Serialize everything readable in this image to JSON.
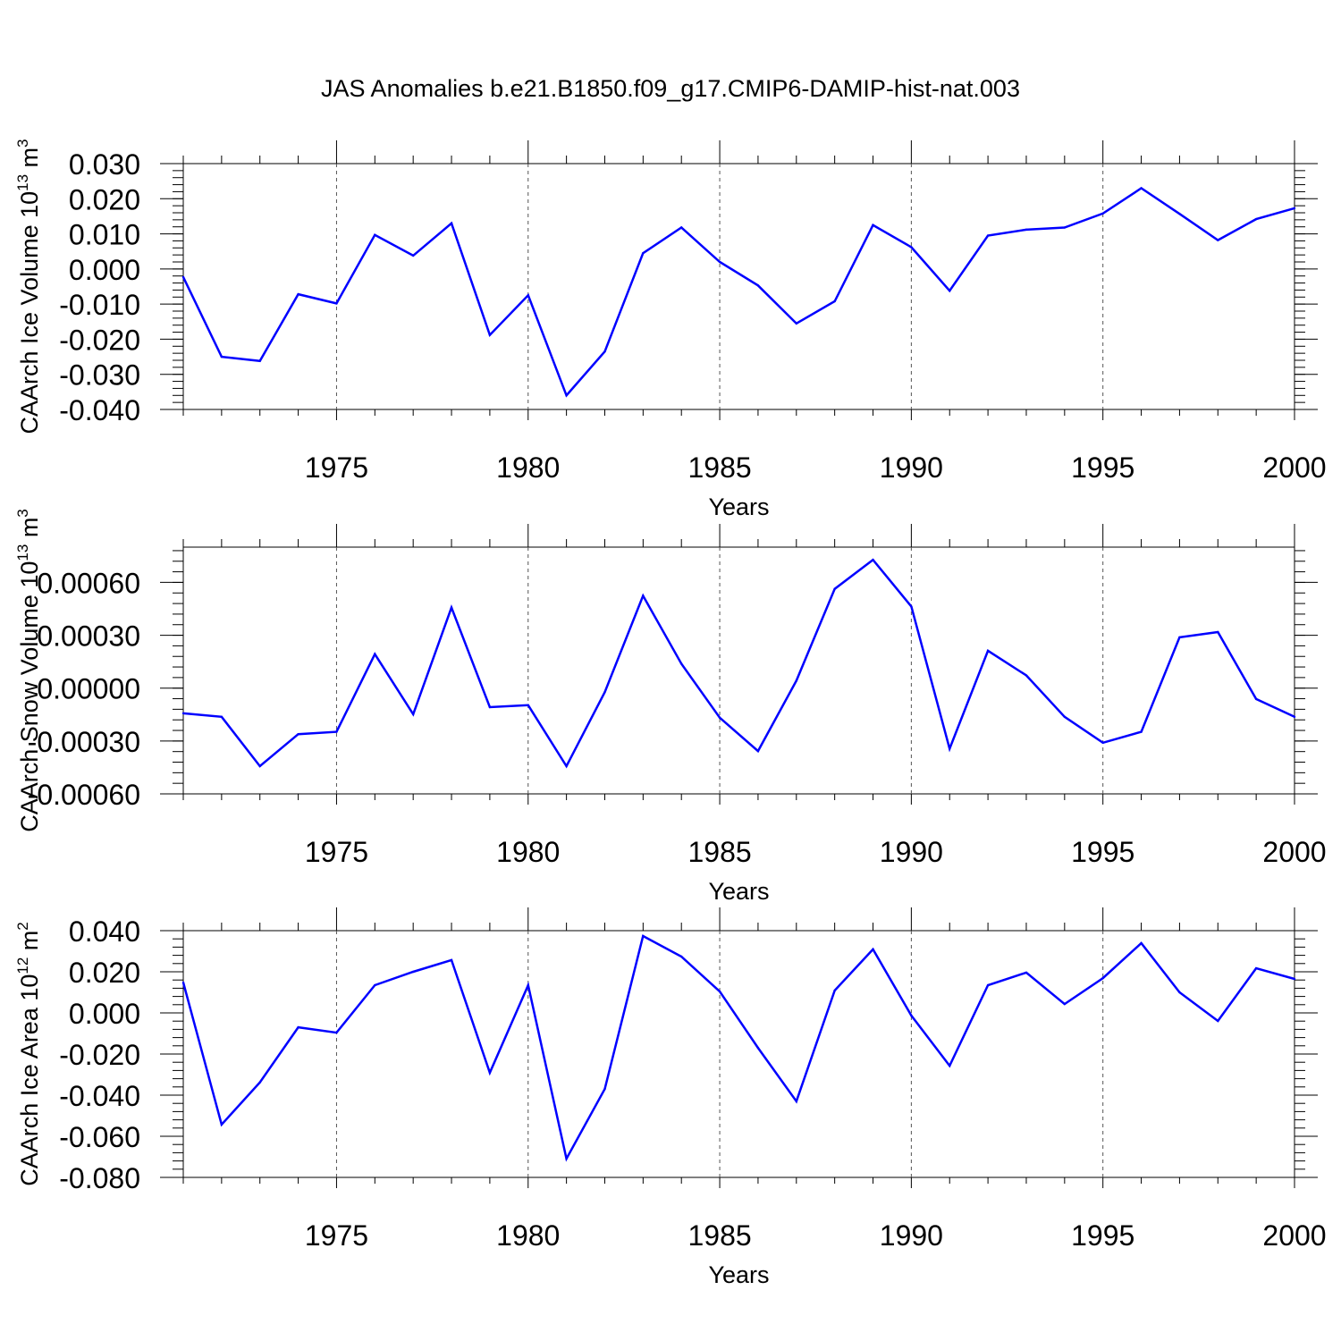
{
  "title": "JAS Anomalies b.e21.B1850.f09_g17.CMIP6-DAMIP-hist-nat.003",
  "chart_data": [
    {
      "type": "line",
      "ylabel": "CAArch Ice Volume 10",
      "ylabel_sup": "13",
      "ylabel_unit": " m",
      "ylabel_unit_sup": "3",
      "xlabel": "Years",
      "xlim": [
        1971,
        2000
      ],
      "ylim": [
        -0.04,
        0.03
      ],
      "xticks": [
        "1975",
        "1980",
        "1985",
        "1990",
        "1995",
        "2000"
      ],
      "yticks": [
        "0.030",
        "0.020",
        "0.010",
        "0.000",
        "-0.010",
        "-0.020",
        "-0.030",
        "-0.040"
      ],
      "grid": "vertical dashed at major x ticks",
      "color": "#0000ff",
      "x": [
        1971,
        1972,
        1973,
        1974,
        1975,
        1976,
        1977,
        1978,
        1979,
        1980,
        1981,
        1982,
        1983,
        1984,
        1985,
        1986,
        1987,
        1988,
        1989,
        1990,
        1991,
        1992,
        1993,
        1994,
        1995,
        1996,
        1997,
        1998,
        1999,
        2000
      ],
      "values": [
        -0.0023,
        -0.025,
        -0.0262,
        -0.0072,
        -0.0098,
        0.0097,
        0.0038,
        0.013,
        -0.0188,
        -0.0075,
        -0.036,
        -0.0235,
        0.0045,
        0.0118,
        0.002,
        -0.0047,
        -0.0155,
        -0.0092,
        0.0125,
        0.0062,
        -0.0062,
        0.0095,
        0.0112,
        0.0118,
        0.0158,
        0.023,
        0.0157,
        0.0082,
        0.0142,
        0.0173
      ]
    },
    {
      "type": "line",
      "ylabel": "CAArch Snow Volume 10",
      "ylabel_sup": "13",
      "ylabel_unit": " m",
      "ylabel_unit_sup": "3",
      "xlabel": "Years",
      "xlim": [
        1971,
        2000
      ],
      "ylim": [
        -0.0006,
        0.0008
      ],
      "xticks": [
        "1975",
        "1980",
        "1985",
        "1990",
        "1995",
        "2000"
      ],
      "yticks": [
        "0.00060",
        "0.00030",
        "0.00000",
        "-0.00030",
        "-0.00060"
      ],
      "grid": "vertical dashed at major x ticks",
      "color": "#0000ff",
      "x": [
        1971,
        1972,
        1973,
        1974,
        1975,
        1976,
        1977,
        1978,
        1979,
        1980,
        1981,
        1982,
        1983,
        1984,
        1985,
        1986,
        1987,
        1988,
        1989,
        1990,
        1991,
        1992,
        1993,
        1994,
        1995,
        1996,
        1997,
        1998,
        1999,
        2000
      ],
      "values": [
        -0.000143,
        -0.000163,
        -0.000443,
        -0.000261,
        -0.000248,
        0.000193,
        -0.000148,
        0.000457,
        -0.000108,
        -9.7e-05,
        -0.000443,
        -2.3e-05,
        0.000524,
        0.000138,
        -0.000168,
        -0.000357,
        4.2e-05,
        0.000563,
        0.000728,
        0.000463,
        -0.000344,
        0.000212,
        7.2e-05,
        -0.000163,
        -0.00031,
        -0.000248,
        0.000288,
        0.000318,
        -6.2e-05,
        -0.000163
      ]
    },
    {
      "type": "line",
      "ylabel": "CAArch Ice Area 10",
      "ylabel_sup": "12",
      "ylabel_unit": " m",
      "ylabel_unit_sup": "2",
      "xlabel": "Years",
      "xlim": [
        1971,
        2000
      ],
      "ylim": [
        -0.08,
        0.04
      ],
      "xticks": [
        "1975",
        "1980",
        "1985",
        "1990",
        "1995",
        "2000"
      ],
      "yticks": [
        "0.040",
        "0.020",
        "0.000",
        "-0.020",
        "-0.040",
        "-0.060",
        "-0.080"
      ],
      "grid": "vertical dashed at major x ticks",
      "color": "#0000ff",
      "x": [
        1971,
        1972,
        1973,
        1974,
        1975,
        1976,
        1977,
        1978,
        1979,
        1980,
        1981,
        1982,
        1983,
        1984,
        1985,
        1986,
        1987,
        1988,
        1989,
        1990,
        1991,
        1992,
        1993,
        1994,
        1995,
        1996,
        1997,
        1998,
        1999,
        2000
      ],
      "values": [
        0.0148,
        -0.0543,
        -0.0338,
        -0.007,
        -0.0096,
        0.0135,
        0.02,
        0.0257,
        -0.0291,
        0.0135,
        -0.0709,
        -0.037,
        0.0374,
        0.0274,
        0.0104,
        -0.017,
        -0.043,
        0.0109,
        0.0309,
        -0.0013,
        -0.0257,
        0.0135,
        0.0196,
        0.0043,
        0.0169,
        0.0339,
        0.01,
        -0.0039,
        0.0217,
        0.0165
      ]
    }
  ]
}
